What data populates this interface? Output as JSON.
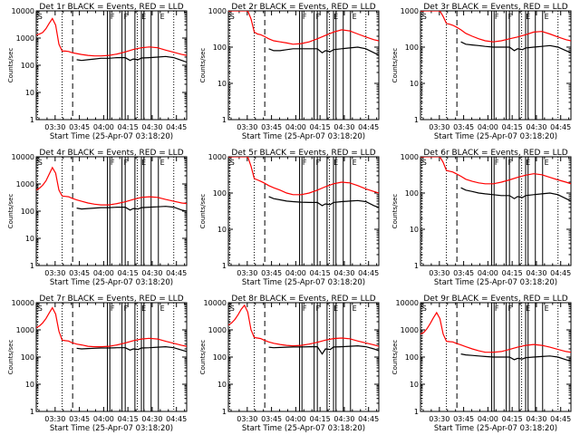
{
  "figure": {
    "ylabel": "Counts/sec",
    "xlabel": "Start Time (25-Apr-07 03:18:20)",
    "time_ticks": [
      "03:30",
      "03:45",
      "04:00",
      "04:15",
      "04:30",
      "04:45"
    ],
    "y_ticks": [
      "1",
      "10",
      "100",
      "1000",
      "10000"
    ],
    "marker_tags": [
      "S",
      "F",
      "E"
    ],
    "colors": {
      "events": "#000000",
      "lld": "#ff0000"
    }
  },
  "chart_data": [
    {
      "type": "line",
      "title": "Det 1r BLACK = Events, RED = LLD",
      "xlabel": "Start Time (25-Apr-07 03:18:20)",
      "ylabel": "Counts/sec",
      "y_scale": "log",
      "ylim": [
        1,
        10000
      ],
      "x_unit": "minutes after 03:18:20",
      "xlim": [
        0,
        93
      ],
      "series": [
        {
          "name": "LLD",
          "color": "#ff0000",
          "x": [
            0,
            2,
            4,
            6,
            8,
            10,
            12,
            14,
            16,
            18,
            20,
            22,
            25,
            28,
            32,
            36,
            40,
            45,
            50,
            55,
            60,
            65,
            70,
            75,
            80,
            85,
            90,
            93
          ],
          "y": [
            1300,
            1400,
            1600,
            2200,
            3500,
            5200,
            3000,
            600,
            330,
            330,
            320,
            290,
            270,
            250,
            230,
            220,
            220,
            230,
            260,
            310,
            380,
            440,
            470,
            440,
            360,
            300,
            250,
            230
          ]
        },
        {
          "name": "Events",
          "color": "#000000",
          "x": [
            25,
            28,
            32,
            36,
            40,
            45,
            50,
            55,
            58,
            60,
            63,
            65,
            70,
            75,
            80,
            85,
            90,
            93
          ],
          "y": [
            160,
            150,
            160,
            170,
            180,
            180,
            190,
            190,
            150,
            170,
            160,
            185,
            190,
            200,
            210,
            190,
            150,
            130
          ]
        }
      ]
    },
    {
      "type": "line",
      "title": "Det 2r BLACK = Events, RED = LLD",
      "xlabel": "Start Time (25-Apr-07 03:18:20)",
      "ylabel": "Counts/sec",
      "y_scale": "log",
      "ylim": [
        1,
        1000
      ],
      "x_unit": "minutes after 03:18:20",
      "xlim": [
        0,
        93
      ],
      "series": [
        {
          "name": "LLD",
          "color": "#ff0000",
          "x": [
            0,
            2,
            4,
            6,
            8,
            10,
            12,
            14,
            16,
            18,
            20,
            22,
            25,
            28,
            32,
            36,
            40,
            45,
            50,
            55,
            60,
            65,
            70,
            75,
            80,
            85,
            90,
            93
          ],
          "y": [
            1000,
            1000,
            1000,
            1000,
            1000,
            1000,
            1000,
            600,
            260,
            230,
            220,
            200,
            170,
            150,
            140,
            130,
            120,
            125,
            140,
            170,
            210,
            260,
            300,
            280,
            230,
            190,
            160,
            150
          ]
        },
        {
          "name": "Events",
          "color": "#000000",
          "x": [
            25,
            28,
            32,
            36,
            40,
            45,
            50,
            55,
            58,
            60,
            63,
            65,
            70,
            75,
            80,
            85,
            90,
            93
          ],
          "y": [
            90,
            80,
            80,
            85,
            90,
            90,
            90,
            90,
            70,
            80,
            75,
            85,
            90,
            95,
            100,
            90,
            70,
            60
          ]
        }
      ]
    },
    {
      "type": "line",
      "title": "Det 3r BLACK = Events, RED = LLD",
      "xlabel": "Start Time (25-Apr-07 03:18:20)",
      "ylabel": "Counts/sec",
      "y_scale": "log",
      "ylim": [
        1,
        1000
      ],
      "x_unit": "minutes after 03:18:20",
      "xlim": [
        0,
        93
      ],
      "series": [
        {
          "name": "LLD",
          "color": "#ff0000",
          "x": [
            0,
            2,
            4,
            6,
            8,
            10,
            12,
            14,
            16,
            18,
            20,
            22,
            25,
            28,
            32,
            36,
            40,
            45,
            50,
            55,
            60,
            65,
            70,
            75,
            80,
            85,
            90,
            93
          ],
          "y": [
            1000,
            1000,
            1000,
            1000,
            1000,
            1000,
            1000,
            700,
            450,
            430,
            400,
            360,
            300,
            240,
            200,
            170,
            150,
            140,
            150,
            170,
            190,
            220,
            260,
            270,
            230,
            190,
            160,
            150
          ]
        },
        {
          "name": "Events",
          "color": "#000000",
          "x": [
            25,
            28,
            32,
            36,
            40,
            45,
            50,
            55,
            58,
            60,
            63,
            65,
            70,
            75,
            80,
            85,
            90,
            93
          ],
          "y": [
            140,
            120,
            115,
            110,
            105,
            100,
            100,
            100,
            80,
            90,
            85,
            95,
            100,
            105,
            110,
            100,
            80,
            70
          ]
        }
      ]
    },
    {
      "type": "line",
      "title": "Det 4r BLACK = Events, RED = LLD",
      "xlabel": "Start Time (25-Apr-07 03:18:20)",
      "ylabel": "Counts/sec",
      "y_scale": "log",
      "ylim": [
        1,
        10000
      ],
      "x_unit": "minutes after 03:18:20",
      "xlim": [
        0,
        93
      ],
      "series": [
        {
          "name": "LLD",
          "color": "#ff0000",
          "x": [
            0,
            2,
            4,
            6,
            8,
            10,
            12,
            14,
            16,
            18,
            20,
            22,
            25,
            28,
            32,
            36,
            40,
            45,
            50,
            55,
            60,
            65,
            70,
            75,
            80,
            85,
            90,
            93
          ],
          "y": [
            600,
            700,
            900,
            1300,
            2300,
            4000,
            2500,
            600,
            360,
            350,
            340,
            300,
            260,
            230,
            200,
            180,
            170,
            170,
            190,
            220,
            270,
            320,
            340,
            320,
            270,
            230,
            200,
            190
          ]
        },
        {
          "name": "Events",
          "color": "#000000",
          "x": [
            25,
            28,
            32,
            36,
            40,
            45,
            50,
            55,
            58,
            60,
            63,
            65,
            70,
            75,
            80,
            85,
            90,
            93
          ],
          "y": [
            130,
            120,
            125,
            130,
            135,
            135,
            140,
            140,
            110,
            125,
            120,
            135,
            140,
            145,
            150,
            140,
            110,
            100
          ]
        }
      ]
    },
    {
      "type": "line",
      "title": "Det 5r BLACK = Events, RED = LLD",
      "xlabel": "Start Time (25-Apr-07 03:18:20)",
      "ylabel": "Counts/sec",
      "y_scale": "log",
      "ylim": [
        1,
        1000
      ],
      "x_unit": "minutes after 03:18:20",
      "xlim": [
        0,
        93
      ],
      "series": [
        {
          "name": "LLD",
          "color": "#ff0000",
          "x": [
            0,
            2,
            4,
            6,
            8,
            10,
            12,
            14,
            16,
            18,
            20,
            22,
            25,
            28,
            32,
            36,
            40,
            45,
            50,
            55,
            60,
            65,
            70,
            75,
            80,
            85,
            90,
            93
          ],
          "y": [
            1000,
            1000,
            1000,
            1000,
            1000,
            1000,
            1000,
            550,
            250,
            230,
            210,
            190,
            160,
            140,
            120,
            100,
            90,
            90,
            100,
            120,
            150,
            180,
            200,
            190,
            160,
            130,
            110,
            100
          ]
        },
        {
          "name": "Events",
          "color": "#000000",
          "x": [
            25,
            28,
            32,
            36,
            40,
            45,
            50,
            55,
            58,
            60,
            63,
            65,
            70,
            75,
            80,
            85,
            90,
            93
          ],
          "y": [
            80,
            70,
            65,
            60,
            58,
            56,
            55,
            55,
            45,
            50,
            48,
            55,
            58,
            60,
            62,
            58,
            45,
            40
          ]
        }
      ]
    },
    {
      "type": "line",
      "title": "Det 6r BLACK = Events, RED = LLD",
      "xlabel": "Start Time (25-Apr-07 03:18:20)",
      "ylabel": "Counts/sec",
      "y_scale": "log",
      "ylim": [
        1,
        1000
      ],
      "x_unit": "minutes after 03:18:20",
      "xlim": [
        0,
        93
      ],
      "series": [
        {
          "name": "LLD",
          "color": "#ff0000",
          "x": [
            0,
            2,
            4,
            6,
            8,
            10,
            12,
            14,
            16,
            18,
            20,
            22,
            25,
            28,
            32,
            36,
            40,
            45,
            50,
            55,
            60,
            65,
            70,
            75,
            80,
            85,
            90,
            93
          ],
          "y": [
            1000,
            1000,
            1000,
            1000,
            1000,
            1000,
            1000,
            700,
            420,
            400,
            380,
            340,
            290,
            240,
            210,
            190,
            180,
            180,
            200,
            230,
            270,
            310,
            340,
            320,
            270,
            230,
            200,
            180
          ]
        },
        {
          "name": "Events",
          "color": "#000000",
          "x": [
            25,
            28,
            32,
            36,
            40,
            45,
            50,
            55,
            58,
            60,
            63,
            65,
            70,
            75,
            80,
            85,
            90,
            93
          ],
          "y": [
            140,
            120,
            110,
            100,
            95,
            90,
            85,
            85,
            70,
            80,
            75,
            85,
            90,
            95,
            100,
            90,
            70,
            60
          ]
        }
      ]
    },
    {
      "type": "line",
      "title": "Det 7r BLACK = Events, RED = LLD",
      "xlabel": "Start Time (25-Apr-07 03:18:20)",
      "ylabel": "Counts/sec",
      "y_scale": "log",
      "ylim": [
        1,
        10000
      ],
      "x_unit": "minutes after 03:18:20",
      "xlim": [
        0,
        93
      ],
      "series": [
        {
          "name": "LLD",
          "color": "#ff0000",
          "x": [
            0,
            2,
            4,
            6,
            8,
            10,
            12,
            14,
            16,
            18,
            20,
            22,
            25,
            28,
            32,
            36,
            40,
            45,
            50,
            55,
            60,
            65,
            70,
            75,
            80,
            85,
            90,
            93
          ],
          "y": [
            1200,
            1400,
            1800,
            2600,
            4200,
            6500,
            3800,
            900,
            420,
            400,
            390,
            340,
            300,
            280,
            250,
            240,
            240,
            250,
            280,
            330,
            400,
            460,
            490,
            460,
            380,
            320,
            270,
            250
          ]
        },
        {
          "name": "Events",
          "color": "#000000",
          "x": [
            25,
            28,
            32,
            36,
            40,
            45,
            50,
            55,
            58,
            60,
            63,
            65,
            70,
            75,
            80,
            85,
            90,
            93
          ],
          "y": [
            210,
            200,
            205,
            210,
            215,
            215,
            220,
            220,
            180,
            200,
            190,
            215,
            220,
            230,
            240,
            220,
            180,
            160
          ]
        }
      ]
    },
    {
      "type": "line",
      "title": "Det 8r BLACK = Events, RED = LLD",
      "xlabel": "Start Time (25-Apr-07 03:18:20)",
      "ylabel": "Counts/sec",
      "y_scale": "log",
      "ylim": [
        1,
        10000
      ],
      "x_unit": "minutes after 03:18:20",
      "xlim": [
        0,
        93
      ],
      "series": [
        {
          "name": "LLD",
          "color": "#ff0000",
          "x": [
            0,
            2,
            4,
            6,
            8,
            10,
            12,
            14,
            16,
            18,
            20,
            22,
            25,
            28,
            32,
            36,
            40,
            45,
            50,
            55,
            60,
            65,
            70,
            75,
            80,
            85,
            90,
            93
          ],
          "y": [
            1500,
            1800,
            2400,
            3600,
            5800,
            8000,
            4500,
            1000,
            520,
            500,
            480,
            420,
            360,
            320,
            290,
            270,
            260,
            270,
            300,
            350,
            420,
            480,
            500,
            470,
            390,
            330,
            280,
            250
          ]
        },
        {
          "name": "Events",
          "color": "#000000",
          "x": [
            25,
            28,
            32,
            36,
            40,
            45,
            50,
            55,
            58,
            60,
            63,
            65,
            70,
            75,
            80,
            85,
            90,
            93
          ],
          "y": [
            230,
            220,
            225,
            230,
            235,
            235,
            240,
            240,
            130,
            200,
            190,
            235,
            240,
            250,
            260,
            240,
            200,
            170
          ]
        }
      ]
    },
    {
      "type": "line",
      "title": "Det 9r BLACK = Events, RED = LLD",
      "xlabel": "Start Time (25-Apr-07 03:18:20)",
      "ylabel": "Counts/sec",
      "y_scale": "log",
      "ylim": [
        1,
        10000
      ],
      "x_unit": "minutes after 03:18:20",
      "xlim": [
        0,
        93
      ],
      "series": [
        {
          "name": "LLD",
          "color": "#ff0000",
          "x": [
            0,
            2,
            4,
            6,
            8,
            10,
            12,
            14,
            16,
            18,
            20,
            22,
            25,
            28,
            32,
            36,
            40,
            45,
            50,
            55,
            60,
            65,
            70,
            75,
            80,
            85,
            90,
            93
          ],
          "y": [
            700,
            800,
            1100,
            1700,
            2800,
            4300,
            2600,
            700,
            380,
            370,
            360,
            320,
            280,
            240,
            200,
            170,
            150,
            150,
            160,
            190,
            230,
            270,
            290,
            270,
            230,
            190,
            160,
            150
          ]
        },
        {
          "name": "Events",
          "color": "#000000",
          "x": [
            25,
            28,
            32,
            36,
            40,
            45,
            50,
            55,
            58,
            60,
            63,
            65,
            70,
            75,
            80,
            85,
            90,
            93
          ],
          "y": [
            130,
            120,
            115,
            110,
            105,
            100,
            100,
            100,
            80,
            90,
            85,
            95,
            100,
            105,
            110,
            100,
            80,
            70
          ]
        }
      ]
    }
  ]
}
